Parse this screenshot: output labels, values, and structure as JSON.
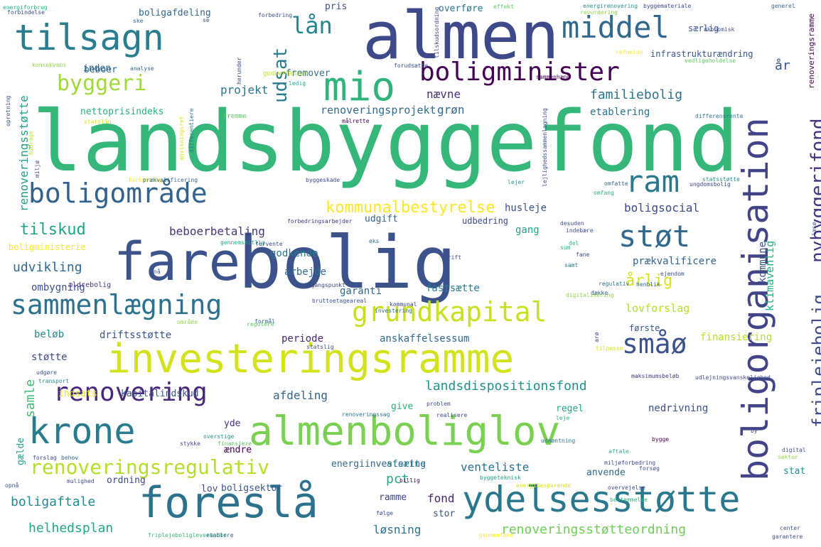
{
  "words": [
    {
      "text": "landsbyggefond",
      "color": "#35b779"
    },
    {
      "text": "bolig",
      "color": "#3b528b"
    },
    {
      "text": "almen",
      "color": "#3e4989"
    },
    {
      "text": "boligorganisation",
      "color": "#414487"
    },
    {
      "text": "investeringsramme",
      "color": "#d2e21b"
    },
    {
      "text": "almenboliglov",
      "color": "#7ad151"
    },
    {
      "text": "fare",
      "color": "#3b528b"
    },
    {
      "text": "foreslå",
      "color": "#2c728e"
    },
    {
      "text": "ydelsesstøtte",
      "color": "#2a788e"
    },
    {
      "text": "krone",
      "color": "#287c8e"
    },
    {
      "text": "tilsagn",
      "color": "#287d8e"
    },
    {
      "text": "middel",
      "color": "#31688e"
    },
    {
      "text": "mio",
      "color": "#2fb47c"
    },
    {
      "text": "boligminister",
      "color": "#440154"
    },
    {
      "text": "sammenlægning",
      "color": "#2c728e"
    },
    {
      "text": "boligområde",
      "color": "#33638d"
    },
    {
      "text": "grundkapital",
      "color": "#c8e020"
    },
    {
      "text": "renovering",
      "color": "#482878"
    },
    {
      "text": "renoveringsregulativ",
      "color": "#b5de2b"
    },
    {
      "text": "småø",
      "color": "#3b528b"
    },
    {
      "text": "støt",
      "color": "#31688e"
    },
    {
      "text": "ram",
      "color": "#2a788e"
    },
    {
      "text": "byggeri",
      "color": "#a0da39"
    },
    {
      "text": "lån",
      "color": "#25848e"
    },
    {
      "text": "nybyggerifond",
      "color": "#46327e"
    },
    {
      "text": "friplejebolig",
      "color": "#3e4a89"
    },
    {
      "text": "kommunalbestyrelse",
      "color": "#fde725"
    },
    {
      "text": "landsdispositionsfond",
      "color": "#21918c"
    },
    {
      "text": "udsat",
      "color": "#297b8e"
    },
    {
      "text": "år",
      "color": "#3b528b"
    },
    {
      "text": "tilskud",
      "color": "#20a486"
    },
    {
      "text": "helhedsplan",
      "color": "#22a785"
    },
    {
      "text": "boligaftale",
      "color": "#23898e"
    },
    {
      "text": "renoveringsstøtteordning",
      "color": "#6ece58"
    },
    {
      "text": "renoveringsprojekt",
      "color": "#2f6c8e"
    },
    {
      "text": "familiebolig",
      "color": "#2c728e"
    },
    {
      "text": "udvikling",
      "color": "#31688e"
    },
    {
      "text": "beboerbetaling",
      "color": "#46337e"
    },
    {
      "text": "venteliste",
      "color": "#2d708e"
    },
    {
      "text": "årlig",
      "color": "#d8e219"
    },
    {
      "text": "boligsocial",
      "color": "#3e4a89"
    },
    {
      "text": "afdeling",
      "color": "#33638d"
    },
    {
      "text": "pct",
      "color": "#22a785"
    },
    {
      "text": "samle",
      "color": "#3dbc74"
    },
    {
      "text": "renoveringsstøtte",
      "color": "#1fa088"
    },
    {
      "text": "fond",
      "color": "#482475"
    },
    {
      "text": "løsning",
      "color": "#2e6f8e"
    },
    {
      "text": "lovforslag",
      "color": "#b5de2b"
    },
    {
      "text": "klimavenlig",
      "color": "#29af7f"
    },
    {
      "text": "projekt",
      "color": "#2c728e"
    },
    {
      "text": "nævne",
      "color": "#46327e"
    },
    {
      "text": "grøn",
      "color": "#31688e"
    },
    {
      "text": "etablering",
      "color": "#2c728e"
    },
    {
      "text": "husleje",
      "color": "#3b528b"
    },
    {
      "text": "gang",
      "color": "#20a486"
    },
    {
      "text": "kommune",
      "color": "#3b528b"
    },
    {
      "text": "fastsætte",
      "color": "#287d8e"
    },
    {
      "text": "prækvalificere",
      "color": "#33638d"
    },
    {
      "text": "finansiering",
      "color": "#b8de29"
    },
    {
      "text": "anskaffelsessum",
      "color": "#31688e"
    },
    {
      "text": "driftsstøtte",
      "color": "#3b528b"
    },
    {
      "text": "periode",
      "color": "#482878"
    },
    {
      "text": "arbejde",
      "color": "#2e6e8e"
    },
    {
      "text": "garanti",
      "color": "#31688e"
    },
    {
      "text": "godkende",
      "color": "#2a788e"
    },
    {
      "text": "ombygning",
      "color": "#3b528b"
    },
    {
      "text": "beløb",
      "color": "#23898e"
    },
    {
      "text": "støtte",
      "color": "#3e4989"
    },
    {
      "text": "indsats",
      "color": "#e5e419"
    },
    {
      "text": "kapitalindskud",
      "color": "#39558c"
    },
    {
      "text": "nedrivning",
      "color": "#3b528b"
    },
    {
      "text": "regel",
      "color": "#22a785"
    },
    {
      "text": "give",
      "color": "#2db27d"
    },
    {
      "text": "yde",
      "color": "#46327e"
    },
    {
      "text": "ændre",
      "color": "#440154"
    },
    {
      "text": "ordning",
      "color": "#3e4989"
    },
    {
      "text": "lov",
      "color": "#3e4989"
    },
    {
      "text": "boligsektor",
      "color": "#39558c"
    },
    {
      "text": "energiinvestering",
      "color": "#31688e"
    },
    {
      "text": "afsætte",
      "color": "#2a788e"
    },
    {
      "text": "anvende",
      "color": "#31688e"
    },
    {
      "text": "stat",
      "color": "#21918c"
    },
    {
      "text": "stor",
      "color": "#39558c"
    },
    {
      "text": "ramme",
      "color": "#3e4989"
    },
    {
      "text": "udgift",
      "color": "#33638d"
    },
    {
      "text": "udbedring",
      "color": "#3e4a89"
    },
    {
      "text": "beboer",
      "color": "#31688e"
    },
    {
      "text": "inden",
      "color": "#31688e"
    },
    {
      "text": "nettoprisindeks",
      "color": "#29af7f"
    },
    {
      "text": "fremover",
      "color": "#2c728e"
    },
    {
      "text": "boligafdeling",
      "color": "#31688e"
    },
    {
      "text": "overføre",
      "color": "#2c728e"
    },
    {
      "text": "pris",
      "color": "#3b528b"
    },
    {
      "text": "særlig",
      "color": "#3b528b"
    },
    {
      "text": "infrastrukturændring",
      "color": "#39558c"
    },
    {
      "text": "gælde",
      "color": "#1fa088"
    },
    {
      "text": "første",
      "color": "#39558c"
    },
    {
      "text": "renoveringsramme",
      "color": "#440154"
    },
    {
      "text": "boligministerie",
      "color": "#fde725"
    },
    {
      "text": "ældrebolig",
      "color": "#46327e"
    },
    {
      "text": "energiforbrug",
      "color": "#2db27d"
    },
    {
      "text": "energirenovering",
      "color": "#21918c"
    },
    {
      "text": "byggemateriale",
      "color": "#3e4989"
    },
    {
      "text": "generel",
      "color": "#31688e"
    },
    {
      "text": "økonomisk",
      "color": "#3b528b"
    },
    {
      "text": "vedligeholdelse",
      "color": "#5ec962"
    },
    {
      "text": "refusion",
      "color": "#fde725"
    },
    {
      "text": "forbindelse",
      "color": "#3e4a89"
    },
    {
      "text": "konsekvens",
      "color": "#8fd744"
    },
    {
      "text": "analyse",
      "color": "#31688e"
    },
    {
      "text": "godkendelse",
      "color": "#c2df23"
    },
    {
      "text": "ledig",
      "color": "#22a785"
    },
    {
      "text": "forudsætte",
      "color": "#3b528b"
    },
    {
      "text": "sammenhæng",
      "color": "#440154"
    },
    {
      "text": "målrette",
      "color": "#440154"
    },
    {
      "text": "differensrente",
      "color": "#2a788e"
    },
    {
      "text": "fremme",
      "color": "#5ec962"
    },
    {
      "text": "statslån",
      "color": "#d8e219"
    },
    {
      "text": "fortætning",
      "color": "#fde725"
    },
    {
      "text": "prækvalificering",
      "color": "#31688e"
    },
    {
      "text": "byggeskade",
      "color": "#3e4a89"
    },
    {
      "text": "lejer",
      "color": "#21918c"
    },
    {
      "text": "omfatte",
      "color": "#31688e"
    },
    {
      "text": "omfang",
      "color": "#2db27d"
    },
    {
      "text": "statsstøtte",
      "color": "#21918c"
    },
    {
      "text": "ungdomsbolig",
      "color": "#3e4989"
    },
    {
      "text": "forbedringsarbejder",
      "color": "#46337e"
    },
    {
      "text": "gennemsnitlig",
      "color": "#22a785"
    },
    {
      "text": "forvente",
      "color": "#3e4989"
    },
    {
      "text": "desuden",
      "color": "#3b528b"
    },
    {
      "text": "indebære",
      "color": "#3b528b"
    },
    {
      "text": "eks",
      "color": "#2c728e"
    },
    {
      "text": "fane",
      "color": "#3e4989"
    },
    {
      "text": "samt",
      "color": "#2a788e"
    },
    {
      "text": "ejendom",
      "color": "#3b528b"
    },
    {
      "text": "henblik",
      "color": "#31688e"
    },
    {
      "text": "dække",
      "color": "#39558c"
    },
    {
      "text": "regulativ",
      "color": "#2c728e"
    },
    {
      "text": "digitalisering",
      "color": "#8fd744"
    },
    {
      "text": "udgangspunkt",
      "color": "#414487"
    },
    {
      "text": "kommunal",
      "color": "#3e4989"
    },
    {
      "text": "investering",
      "color": "#31688e"
    },
    {
      "text": "bruttoetageareal",
      "color": "#3b528b"
    },
    {
      "text": "område",
      "color": "#8fd744"
    },
    {
      "text": "regulere",
      "color": "#5ec962"
    },
    {
      "text": "formål",
      "color": "#31688e"
    },
    {
      "text": "statslig",
      "color": "#3b528b"
    },
    {
      "text": "udgøre",
      "color": "#3b528b"
    },
    {
      "text": "transport",
      "color": "#21918c"
    },
    {
      "text": "maksimumsbeløb",
      "color": "#46327e"
    },
    {
      "text": "udlejningsvanskelighed",
      "color": "#3e4989"
    },
    {
      "text": "problem",
      "color": "#3b528b"
    },
    {
      "text": "renoveringssag",
      "color": "#2a788e"
    },
    {
      "text": "realisere",
      "color": "#3e4989"
    },
    {
      "text": "leje",
      "color": "#2db27d"
    },
    {
      "text": "overstige",
      "color": "#21918c"
    },
    {
      "text": "stykke",
      "color": "#3e4989"
    },
    {
      "text": "finansiere",
      "color": "#5ec962"
    },
    {
      "text": "forslag",
      "color": "#3e4989"
    },
    {
      "text": "behov",
      "color": "#31688e"
    },
    {
      "text": "billig",
      "color": "#440154"
    },
    {
      "text": "byggeteknisk",
      "color": "#1fa088"
    },
    {
      "text": "miljøforbedring",
      "color": "#3e4989"
    },
    {
      "text": "forsøg",
      "color": "#3b528b"
    },
    {
      "text": "mulighed",
      "color": "#3e4989"
    },
    {
      "text": "opnå",
      "color": "#3b528b"
    },
    {
      "text": "energibesparende",
      "color": "#d8e219"
    },
    {
      "text": "overvejelse",
      "color": "#3e4989"
    },
    {
      "text": "bestemmelse",
      "color": "#2db27d"
    },
    {
      "text": "følge",
      "color": "#3e4989"
    },
    {
      "text": "gennemføre",
      "color": "#fde725"
    },
    {
      "text": "friplejeboligleverandør",
      "color": "#35b779"
    },
    {
      "text": "etablere",
      "color": "#31688e"
    },
    {
      "text": "garantere",
      "color": "#3b528b"
    },
    {
      "text": "center",
      "color": "#3b528b"
    },
    {
      "text": "by",
      "color": "#3e4989"
    },
    {
      "text": "bygge",
      "color": "#440154"
    },
    {
      "text": "digital",
      "color": "#3b528b"
    },
    {
      "text": "sektor",
      "color": "#8fd744"
    },
    {
      "text": "aftale",
      "color": "#2db27d"
    },
    {
      "text": "udmøntning",
      "color": "#2c728e"
    },
    {
      "text": "ske",
      "color": "#31688e"
    },
    {
      "text": "se",
      "color": "#3b528b"
    },
    {
      "text": "forbedring",
      "color": "#3b528b"
    },
    {
      "text": "effekt",
      "color": "#5ec962"
    },
    {
      "text": "revurdering",
      "color": "#8fd744"
    },
    {
      "text": "tilskudsordning",
      "color": "#3e4989"
    },
    {
      "text": "herunder",
      "color": "#3e4989"
    },
    {
      "text": "opretning",
      "color": "#3b528b"
    },
    {
      "text": "bidrage",
      "color": "#c2df23"
    },
    {
      "text": "miljø",
      "color": "#3e4989"
    },
    {
      "text": "anvisningsret",
      "color": "#d8e219"
    },
    {
      "text": "differentiere",
      "color": "#2c728e"
    },
    {
      "text": "lejlighedssammenlægning",
      "color": "#3b528b"
    },
    {
      "text": "læsø",
      "color": "#3b528b"
    },
    {
      "text": "nå",
      "color": "#3b528b"
    },
    {
      "text": "sum",
      "color": "#2db27d"
    },
    {
      "text": "del",
      "color": "#2db27d"
    },
    {
      "text": "drift",
      "color": "#3e4989"
    },
    {
      "text": "arø",
      "color": "#3e4989"
    },
    {
      "text": "tilpasse",
      "color": "#d8e219"
    }
  ]
}
